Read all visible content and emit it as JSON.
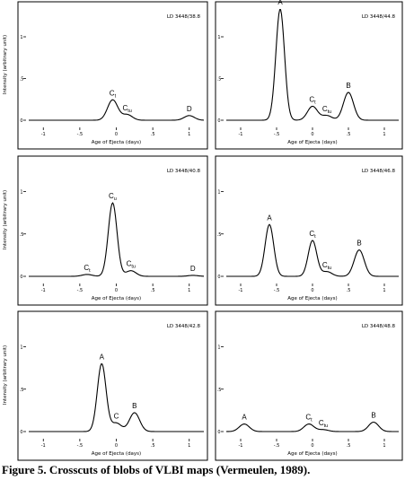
{
  "caption": {
    "label": "Figure 5.",
    "text": "Crosscuts of blobs of VLBI maps (Vermeulen, 1989)."
  },
  "chart_data": [
    {
      "type": "line",
      "panel_id": "LD 3448/38.8",
      "xlabel": "Age of Ejecta (days)",
      "ylabel": "Intensity (arbitrary unit)",
      "xticks": [
        "-1",
        "-.5",
        "0",
        ".5",
        "1"
      ],
      "yticks": [
        "0",
        ".5",
        "1"
      ],
      "xlim": [
        -1.2,
        1.2
      ],
      "ylim": [
        0,
        1.2
      ],
      "peaks": [
        {
          "label": "C",
          "sub": "t",
          "x": -0.05,
          "y": 0.22
        },
        {
          "label": "C",
          "sub": "tu",
          "x": 0.15,
          "y": 0.06
        },
        {
          "label": "D",
          "sub": "",
          "x": 1.0,
          "y": 0.05
        }
      ]
    },
    {
      "type": "line",
      "panel_id": "LD 3448/44.8",
      "xlabel": "Age of Ejecta (days)",
      "ylabel": "",
      "xticks": [
        "-1",
        "-.5",
        "0",
        ".5",
        "1"
      ],
      "yticks": [
        "0",
        ".5",
        "1"
      ],
      "xlim": [
        -1.2,
        1.2
      ],
      "ylim": [
        0,
        1.2
      ],
      "peaks": [
        {
          "label": "A",
          "sub": "",
          "x": -0.45,
          "y": 1.2
        },
        {
          "label": "C",
          "sub": "t",
          "x": 0.0,
          "y": 0.15
        },
        {
          "label": "C",
          "sub": "tu",
          "x": 0.2,
          "y": 0.05
        },
        {
          "label": "B",
          "sub": "",
          "x": 0.5,
          "y": 0.3
        }
      ]
    },
    {
      "type": "line",
      "panel_id": "LD 3448/40.8",
      "xlabel": "Age of Ejecta (days)",
      "ylabel": "Intensity (arbitrary unit)",
      "xticks": [
        "-1",
        "-.5",
        "0",
        ".5",
        "1"
      ],
      "yticks": [
        "0",
        ".5",
        "1"
      ],
      "xlim": [
        -1.2,
        1.2
      ],
      "ylim": [
        0,
        1.2
      ],
      "peaks": [
        {
          "label": "C",
          "sub": "t",
          "x": -0.4,
          "y": 0.02
        },
        {
          "label": "C",
          "sub": "u",
          "x": -0.05,
          "y": 0.78
        },
        {
          "label": "C",
          "sub": "tu",
          "x": 0.2,
          "y": 0.06
        },
        {
          "label": "D",
          "sub": "",
          "x": 1.05,
          "y": 0.01
        }
      ]
    },
    {
      "type": "line",
      "panel_id": "LD 3448/46.8",
      "xlabel": "Age of Ejecta (days)",
      "ylabel": "",
      "xticks": [
        "-1",
        "-.5",
        "0",
        ".5",
        "1"
      ],
      "yticks": [
        "0",
        ".5",
        "1"
      ],
      "xlim": [
        -1.2,
        1.2
      ],
      "ylim": [
        0,
        1.2
      ],
      "peaks": [
        {
          "label": "A",
          "sub": "",
          "x": -0.6,
          "y": 0.55
        },
        {
          "label": "C",
          "sub": "t",
          "x": 0.0,
          "y": 0.38
        },
        {
          "label": "C",
          "sub": "tu",
          "x": 0.2,
          "y": 0.05
        },
        {
          "label": "B",
          "sub": "",
          "x": 0.65,
          "y": 0.28
        }
      ]
    },
    {
      "type": "line",
      "panel_id": "LD 3448/42.8",
      "xlabel": "Age of Ejecta (days)",
      "ylabel": "Intensity (arbitrary unit)",
      "xticks": [
        "-1",
        "-.5",
        "0",
        ".5",
        "1"
      ],
      "yticks": [
        "0",
        ".5",
        "1"
      ],
      "xlim": [
        -1.2,
        1.2
      ],
      "ylim": [
        0,
        1.2
      ],
      "peaks": [
        {
          "label": "A",
          "sub": "",
          "x": -0.2,
          "y": 0.72
        },
        {
          "label": "C",
          "sub": "",
          "x": 0.0,
          "y": 0.09
        },
        {
          "label": "B",
          "sub": "",
          "x": 0.25,
          "y": 0.2
        }
      ]
    },
    {
      "type": "line",
      "panel_id": "LD 3448/48.8",
      "xlabel": "Age of Ejecta (days)",
      "ylabel": "",
      "xticks": [
        "-1",
        "-.5",
        "0",
        ".5",
        "1"
      ],
      "yticks": [
        "0",
        ".5",
        "1"
      ],
      "xlim": [
        -1.2,
        1.2
      ],
      "ylim": [
        0,
        1.2
      ],
      "peaks": [
        {
          "label": "A",
          "sub": "",
          "x": -0.95,
          "y": 0.08
        },
        {
          "label": "C",
          "sub": "t",
          "x": -0.05,
          "y": 0.08
        },
        {
          "label": "C",
          "sub": "tu",
          "x": 0.15,
          "y": 0.02
        },
        {
          "label": "B",
          "sub": "",
          "x": 0.85,
          "y": 0.1
        }
      ]
    }
  ]
}
